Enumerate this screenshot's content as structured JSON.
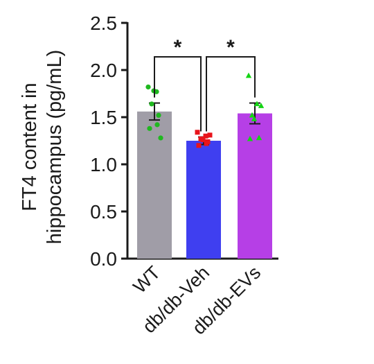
{
  "chart_data": {
    "type": "bar",
    "ylabel_lines": [
      "FT4 content in",
      "hippocampus (pg/mL)"
    ],
    "categories": [
      "WT",
      "db/db-Veh",
      "db/db-EVs"
    ],
    "values": [
      1.56,
      1.25,
      1.54
    ],
    "errors": [
      0.09,
      0.04,
      0.11
    ],
    "colors": [
      "#a09da7",
      "#3f3ff0",
      "#b63fe6"
    ],
    "point_colors": [
      "#1fb81f",
      "#e8141b",
      "#14d414"
    ],
    "point_markers": [
      "circle",
      "square",
      "triangle"
    ],
    "points": [
      [
        1.82,
        1.77,
        1.64,
        1.52,
        1.38,
        1.28,
        1.78,
        1.42
      ],
      [
        1.34,
        1.3,
        1.27,
        1.24,
        1.2,
        1.31,
        1.26,
        1.22
      ],
      [
        1.94,
        1.64,
        1.52,
        1.28,
        1.27,
        1.62,
        1.48
      ]
    ],
    "ylim": [
      0,
      2.5
    ],
    "yticks": [
      0.0,
      0.5,
      1.0,
      1.5,
      2.0,
      2.5
    ],
    "ytick_labels": [
      "0.0",
      "0.5",
      "1.0",
      "1.5",
      "2.0",
      "2.5"
    ],
    "significance": [
      {
        "from": 0,
        "to": 1,
        "label": "*",
        "level": 2.14
      },
      {
        "from": 1,
        "to": 2,
        "label": "*",
        "level": 2.14
      }
    ]
  }
}
